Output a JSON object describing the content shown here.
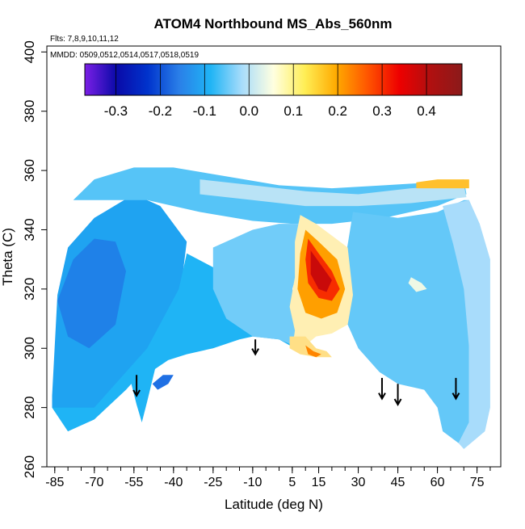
{
  "chart_data": {
    "type": "heatmap",
    "title": "ATOM4 Northbound MS_Abs_560nm",
    "annotations": [
      {
        "text": "Flts: 7,8,9,10,11,12"
      },
      {
        "text": "MMDD: 0509,0512,0514,0517,0518,0519"
      }
    ],
    "xlabel": "Latitude (deg N)",
    "ylabel": "Theta (C)",
    "xlim": [
      -88,
      84
    ],
    "ylim": [
      260,
      402
    ],
    "x_ticks": [
      -85,
      -70,
      -55,
      -40,
      -25,
      -10,
      5,
      15,
      30,
      45,
      60,
      75
    ],
    "x_tick_labels": [
      "-85",
      "-70",
      "-55",
      "-40",
      "-25",
      "-10",
      "5",
      "15",
      "30",
      "45",
      "60",
      "75"
    ],
    "y_ticks": [
      260,
      280,
      300,
      320,
      340,
      360,
      380,
      400
    ],
    "y_tick_labels": [
      "260",
      "280",
      "300",
      "320",
      "340",
      "360",
      "380",
      "400"
    ],
    "colorbar": {
      "range": [
        -0.37,
        0.48
      ],
      "ticks": [
        -0.3,
        -0.2,
        -0.1,
        0.0,
        0.1,
        0.2,
        0.3,
        0.4
      ],
      "tick_labels": [
        "-0.3",
        "-0.2",
        "-0.1",
        "0.0",
        "0.1",
        "0.2",
        "0.3",
        "0.4"
      ],
      "colors": [
        "#7b1fe6",
        "#0a0aa8",
        "#0033cc",
        "#2a7fe8",
        "#1fb4f5",
        "#a8dcfb",
        "#ffffe0",
        "#ffee55",
        "#ffaa00",
        "#ff5500",
        "#ee0000",
        "#b01010",
        "#8b1a1a"
      ]
    },
    "value_color_stops": [
      [
        -0.37,
        "#7b1fe6"
      ],
      [
        -0.3,
        "#0a0aa8"
      ],
      [
        -0.2,
        "#1f5fe0"
      ],
      [
        -0.1,
        "#1fb4f5"
      ],
      [
        0.0,
        "#a8dcfb"
      ],
      [
        0.1,
        "#ffffe0"
      ],
      [
        0.2,
        "#ffb000"
      ],
      [
        0.3,
        "#ff5a00"
      ],
      [
        0.4,
        "#ee0000"
      ],
      [
        0.48,
        "#8b1a1a"
      ]
    ],
    "field_description": "Absorption field over latitude vs potential temperature; values mostly between -0.15 and 0.1, with a strong positive maximum (~0.4) near 10-20 N, 315-335 C",
    "regions": [
      {
        "name": "southern-tropo",
        "value": -0.12,
        "polygon": [
          [
            -86,
            284
          ],
          [
            -84,
            318
          ],
          [
            -80,
            334
          ],
          [
            -70,
            344
          ],
          [
            -55,
            352
          ],
          [
            -45,
            348
          ],
          [
            -35,
            336
          ],
          [
            -40,
            300
          ],
          [
            -52,
            292
          ],
          [
            -60,
            286
          ],
          [
            -70,
            276
          ],
          [
            -80,
            272
          ],
          [
            -86,
            280
          ]
        ]
      },
      {
        "name": "southern-low",
        "value": -0.1,
        "polygon": [
          [
            -86,
            280
          ],
          [
            -80,
            272
          ],
          [
            -70,
            276
          ],
          [
            -58,
            286
          ],
          [
            -56,
            288
          ],
          [
            -54,
            281
          ],
          [
            -53,
            278
          ],
          [
            -52,
            275
          ],
          [
            -50,
            282
          ],
          [
            -47,
            293
          ],
          [
            -42,
            296
          ],
          [
            -35,
            298
          ],
          [
            -25,
            300
          ],
          [
            -15,
            303
          ],
          [
            -10,
            304
          ],
          [
            0,
            303
          ],
          [
            6,
            300
          ],
          [
            10,
            300
          ],
          [
            12,
            305
          ],
          [
            5,
            312
          ],
          [
            -5,
            318
          ],
          [
            -20,
            325
          ],
          [
            -35,
            332
          ],
          [
            -38,
            320
          ],
          [
            -50,
            300
          ],
          [
            -70,
            280
          ]
        ]
      },
      {
        "name": "upper-band",
        "value": -0.06,
        "polygon": [
          [
            -78,
            350
          ],
          [
            -70,
            357
          ],
          [
            -55,
            361
          ],
          [
            -40,
            361
          ],
          [
            -20,
            358
          ],
          [
            0,
            355
          ],
          [
            20,
            354
          ],
          [
            40,
            355
          ],
          [
            58,
            356
          ],
          [
            70,
            357
          ],
          [
            71,
            352
          ],
          [
            60,
            348
          ],
          [
            40,
            344
          ],
          [
            20,
            342
          ],
          [
            5,
            342
          ],
          [
            -10,
            343
          ],
          [
            -30,
            346
          ],
          [
            -50,
            350
          ]
        ]
      },
      {
        "name": "tropopause-top",
        "value": 0.02,
        "polygon": [
          [
            -30,
            357
          ],
          [
            -10,
            355
          ],
          [
            10,
            353
          ],
          [
            30,
            352
          ],
          [
            50,
            354
          ],
          [
            70,
            355
          ],
          [
            71,
            351
          ],
          [
            50,
            349
          ],
          [
            30,
            348
          ],
          [
            10,
            348
          ],
          [
            -10,
            350
          ],
          [
            -30,
            352
          ]
        ]
      },
      {
        "name": "north-mid",
        "value": -0.05,
        "polygon": [
          [
            28,
            346
          ],
          [
            45,
            344
          ],
          [
            60,
            346
          ],
          [
            70,
            350
          ],
          [
            72,
            350
          ],
          [
            72,
            310
          ],
          [
            72,
            290
          ],
          [
            72,
            275
          ],
          [
            68,
            268
          ],
          [
            62,
            272
          ],
          [
            60,
            280
          ],
          [
            55,
            286
          ],
          [
            45,
            288
          ],
          [
            38,
            292
          ],
          [
            30,
            300
          ],
          [
            25,
            310
          ],
          [
            24,
            325
          ],
          [
            26,
            335
          ]
        ]
      },
      {
        "name": "north-high-lat",
        "value": 0.0,
        "polygon": [
          [
            62,
            348
          ],
          [
            72,
            350
          ],
          [
            76,
            342
          ],
          [
            80,
            330
          ],
          [
            80,
            280
          ],
          [
            78,
            272
          ],
          [
            70,
            266
          ],
          [
            68,
            268
          ],
          [
            72,
            275
          ],
          [
            72,
            300
          ],
          [
            70,
            320
          ],
          [
            66,
            335
          ]
        ]
      },
      {
        "name": "tropics-center",
        "value": -0.04,
        "polygon": [
          [
            -25,
            334
          ],
          [
            -10,
            340
          ],
          [
            0,
            342
          ],
          [
            8,
            342
          ],
          [
            10,
            335
          ],
          [
            5,
            320
          ],
          [
            8,
            310
          ],
          [
            12,
            303
          ],
          [
            8,
            300
          ],
          [
            0,
            303
          ],
          [
            -10,
            304
          ],
          [
            -20,
            310
          ],
          [
            -25,
            320
          ]
        ]
      },
      {
        "name": "yellow-ring",
        "value": 0.12,
        "polygon": [
          [
            8,
            345
          ],
          [
            14,
            342
          ],
          [
            20,
            338
          ],
          [
            26,
            334
          ],
          [
            28,
            318
          ],
          [
            26,
            308
          ],
          [
            20,
            305
          ],
          [
            14,
            304
          ],
          [
            10,
            301
          ],
          [
            8,
            300
          ],
          [
            5,
            300
          ],
          [
            6,
            306
          ],
          [
            4,
            314
          ],
          [
            6,
            324
          ],
          [
            6,
            336
          ]
        ]
      },
      {
        "name": "orange-core",
        "value": 0.22,
        "polygon": [
          [
            10,
            340
          ],
          [
            15,
            336
          ],
          [
            22,
            330
          ],
          [
            25,
            320
          ],
          [
            22,
            312
          ],
          [
            16,
            310
          ],
          [
            10,
            312
          ],
          [
            7,
            320
          ],
          [
            8,
            332
          ]
        ]
      },
      {
        "name": "red-core",
        "value": 0.35,
        "polygon": [
          [
            11,
            337
          ],
          [
            15,
            332
          ],
          [
            20,
            326
          ],
          [
            23,
            320
          ],
          [
            20,
            316
          ],
          [
            15,
            317
          ],
          [
            11,
            322
          ],
          [
            10,
            330
          ]
        ]
      },
      {
        "name": "max-core",
        "value": 0.43,
        "polygon": [
          [
            12,
            333
          ],
          [
            16,
            328
          ],
          [
            20,
            323
          ],
          [
            18,
            319
          ],
          [
            15,
            320
          ],
          [
            12,
            325
          ]
        ]
      },
      {
        "name": "yellow-south-blob",
        "value": 0.14,
        "polygon": [
          [
            4,
            304
          ],
          [
            10,
            304
          ],
          [
            14,
            300
          ],
          [
            18,
            299
          ],
          [
            20,
            297
          ],
          [
            14,
            297
          ],
          [
            8,
            298
          ],
          [
            4,
            300
          ]
        ]
      },
      {
        "name": "orange-south-blob",
        "value": 0.25,
        "polygon": [
          [
            10,
            301
          ],
          [
            13,
            299
          ],
          [
            16,
            298
          ],
          [
            14,
            297
          ],
          [
            11,
            298
          ]
        ]
      },
      {
        "name": "upper-yellow-streak",
        "value": 0.18,
        "polygon": [
          [
            52,
            356
          ],
          [
            60,
            357
          ],
          [
            72,
            357
          ],
          [
            72,
            354
          ],
          [
            62,
            354
          ],
          [
            52,
            354
          ]
        ]
      },
      {
        "name": "north-yellow-spot",
        "value": 0.08,
        "polygon": [
          [
            50,
            324
          ],
          [
            54,
            322
          ],
          [
            56,
            320
          ],
          [
            52,
            319
          ],
          [
            49,
            322
          ]
        ]
      },
      {
        "name": "south-isolated-blue",
        "value": -0.18,
        "polygon": [
          [
            -48,
            288
          ],
          [
            -44,
            291
          ],
          [
            -40,
            291
          ],
          [
            -42,
            288
          ],
          [
            -46,
            286
          ]
        ]
      },
      {
        "name": "south-deep-blue",
        "value": -0.16,
        "polygon": [
          [
            -78,
            330
          ],
          [
            -70,
            337
          ],
          [
            -62,
            336
          ],
          [
            -58,
            326
          ],
          [
            -62,
            308
          ],
          [
            -72,
            300
          ],
          [
            -80,
            304
          ],
          [
            -84,
            316
          ]
        ]
      }
    ],
    "arrows": [
      {
        "lat": -54,
        "theta_top": 291,
        "theta_bottom": 284
      },
      {
        "lat": -9,
        "theta_top": 303,
        "theta_bottom": 298
      },
      {
        "lat": 39,
        "theta_top": 290,
        "theta_bottom": 283
      },
      {
        "lat": 45,
        "theta_top": 288,
        "theta_bottom": 281
      },
      {
        "lat": 67,
        "theta_top": 290,
        "theta_bottom": 283
      }
    ]
  }
}
